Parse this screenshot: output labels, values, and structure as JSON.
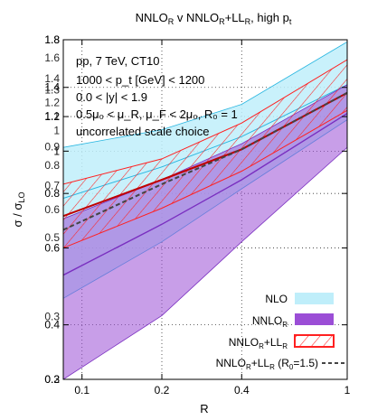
{
  "chart_data": {
    "type": "area",
    "title": "NNLO_R v NNLO_R+LL_R, high p_t",
    "xlabel": "R",
    "ylabel": "σ / σ_LO",
    "xscale": "log",
    "yscale": "log",
    "xlim": [
      0.085,
      1.0
    ],
    "ylim": [
      0.3,
      1.8
    ],
    "x_ticks": [
      "0.1",
      "0.2",
      "0.4",
      "1"
    ],
    "y_ticks": [
      "0.3",
      "0.4",
      "0.6",
      "0.8",
      "1",
      "1.2",
      "1.4",
      "1.8"
    ],
    "overlapping_tick_labels": [
      "0.2",
      "0.3",
      "0.5",
      "0.6",
      "0.7",
      "0.8",
      "0.9",
      "1",
      "1.1",
      "1.2",
      "1.3",
      "1.4",
      "1.6",
      "1.8"
    ],
    "grid": true,
    "annotations": [
      "pp, 7 TeV, CT10",
      "1000 < p_t [GeV] < 1200",
      "0.0 < |y| < 1.9",
      "0.5μ₀ < μ_R, μ_F < 2μ₀, R₀ = 1",
      "uncorrelated scale choice"
    ],
    "legend_position": "bottom-right",
    "series": [
      {
        "name": "NLO",
        "color": "#bfeefa",
        "edge": "#29b6e0",
        "x": [
          0.085,
          0.2,
          0.4,
          1.0
        ],
        "central": [
          0.78,
          0.92,
          1.08,
          1.42
        ],
        "low": [
          0.46,
          0.62,
          0.82,
          1.18
        ],
        "high": [
          1.02,
          1.12,
          1.28,
          1.78
        ]
      },
      {
        "name": "NNLO_R",
        "color": "#9b4ed6",
        "edge": "#7a2fc0",
        "x": [
          0.085,
          0.2,
          0.4,
          1.0
        ],
        "central": [
          0.52,
          0.68,
          0.86,
          1.22
        ],
        "low": [
          0.3,
          0.42,
          0.62,
          1.02
        ],
        "high": [
          0.7,
          0.86,
          1.04,
          1.42
        ]
      },
      {
        "name": "NNLO_R+LL_R",
        "color": "#ff2020",
        "edge": "#ff2020",
        "x": [
          0.085,
          0.2,
          0.4,
          1.0
        ],
        "central": [
          0.71,
          0.86,
          1.01,
          1.36
        ],
        "low": [
          0.6,
          0.74,
          0.9,
          1.24
        ],
        "high": [
          0.84,
          0.96,
          1.16,
          1.62
        ]
      },
      {
        "name": "NNLO_R+LL_R (R₀=1.5)",
        "color": "#444444",
        "style": "dashed",
        "x": [
          0.085,
          0.2,
          0.4,
          1.0
        ],
        "central": [
          0.66,
          0.84,
          1.01,
          1.36
        ]
      }
    ]
  },
  "legend": {
    "items": [
      {
        "label": "NLO",
        "swatch": "nlo"
      },
      {
        "label": "NNLO_R",
        "swatch": "nnlo"
      },
      {
        "label": "NNLO_R+LL_R",
        "swatch": "hatch"
      },
      {
        "label": "NNLO_R+LL_R (R₀=1.5)",
        "swatch": "dash"
      }
    ]
  }
}
